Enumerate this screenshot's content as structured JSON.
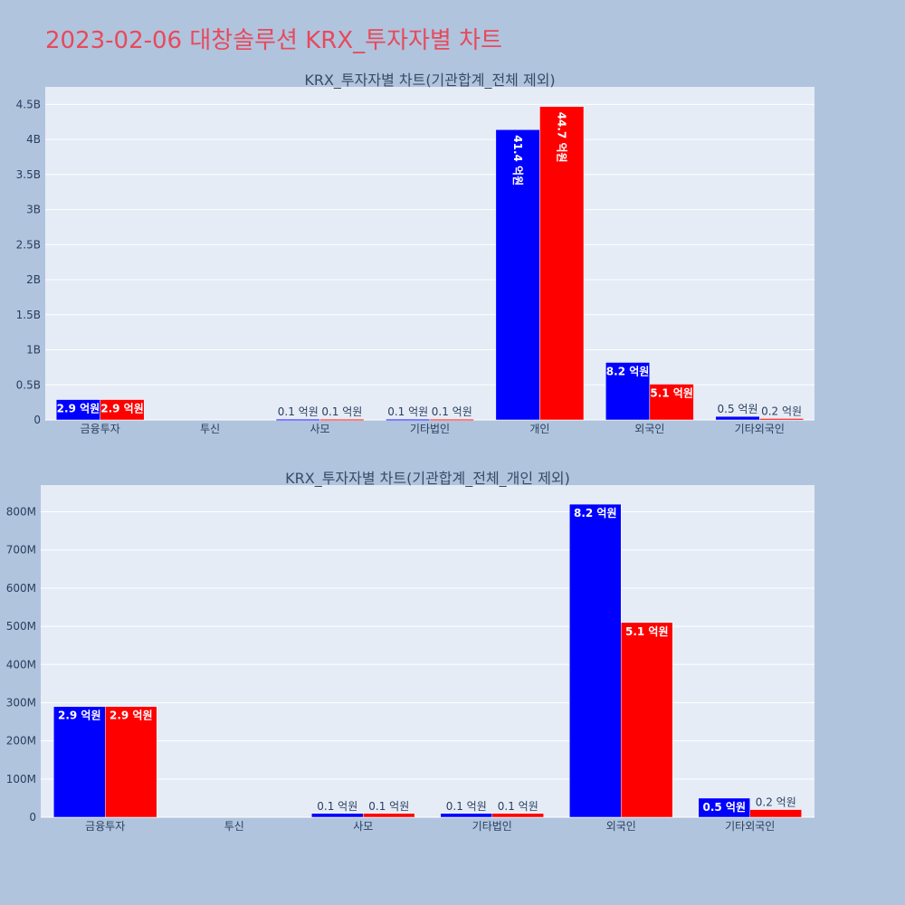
{
  "page_title": "2023-02-06 대창솔루션 KRX_투자자별 차트",
  "colors": {
    "background": "#b0c4de",
    "plot_bg": "#e5ecf6",
    "title": "#e8495c",
    "series_1": "#0000ff",
    "series_2": "#ff0000"
  },
  "chart_data": [
    {
      "type": "bar",
      "title": "KRX_투자자별 차트(기관합계_전체 제외)",
      "categories": [
        "금융투자",
        "투신",
        "사모",
        "기타법인",
        "개인",
        "외국인",
        "기타외국인"
      ],
      "series": [
        {
          "color": "#0000ff",
          "values": [
            290000000,
            0,
            10000000,
            10000000,
            4140000000,
            820000000,
            50000000
          ],
          "labels": [
            "2.9 억원",
            "",
            "0.1 억원",
            "0.1 억원",
            "41.4 억원",
            "8.2 억원",
            "0.5 억원"
          ]
        },
        {
          "color": "#ff0000",
          "values": [
            290000000,
            0,
            10000000,
            10000000,
            4470000000,
            510000000,
            20000000
          ],
          "labels": [
            "2.9 억원",
            "",
            "0.1 억원",
            "0.1 억원",
            "44.7 억원",
            "5.1 억원",
            "0.2 억원"
          ]
        }
      ],
      "ylim": [
        0,
        4750000000
      ],
      "yticks": [
        0,
        500000000,
        1000000000,
        1500000000,
        2000000000,
        2500000000,
        3000000000,
        3500000000,
        4000000000,
        4500000000
      ],
      "ytick_labels": [
        "0",
        "0.5B",
        "1B",
        "1.5B",
        "2B",
        "2.5B",
        "3B",
        "3.5B",
        "4B",
        "4.5B"
      ],
      "xlabel": "",
      "ylabel": "",
      "grid": true,
      "legend": "none"
    },
    {
      "type": "bar",
      "title": "KRX_투자자별 차트(기관합계_전체_개인 제외)",
      "categories": [
        "금융투자",
        "투신",
        "사모",
        "기타법인",
        "외국인",
        "기타외국인"
      ],
      "series": [
        {
          "color": "#0000ff",
          "values": [
            290000000,
            0,
            10000000,
            10000000,
            820000000,
            50000000
          ],
          "labels": [
            "2.9 억원",
            "",
            "0.1 억원",
            "0.1 억원",
            "8.2 억원",
            "0.5 억원"
          ]
        },
        {
          "color": "#ff0000",
          "values": [
            290000000,
            0,
            10000000,
            10000000,
            510000000,
            20000000
          ],
          "labels": [
            "2.9 억원",
            "",
            "0.1 억원",
            "0.1 억원",
            "5.1 억원",
            "0.2 억원"
          ]
        }
      ],
      "ylim": [
        0,
        870000000
      ],
      "yticks": [
        0,
        100000000,
        200000000,
        300000000,
        400000000,
        500000000,
        600000000,
        700000000,
        800000000
      ],
      "ytick_labels": [
        "0",
        "100M",
        "200M",
        "300M",
        "400M",
        "500M",
        "600M",
        "700M",
        "800M"
      ],
      "xlabel": "",
      "ylabel": "",
      "grid": true,
      "legend": "none"
    }
  ]
}
